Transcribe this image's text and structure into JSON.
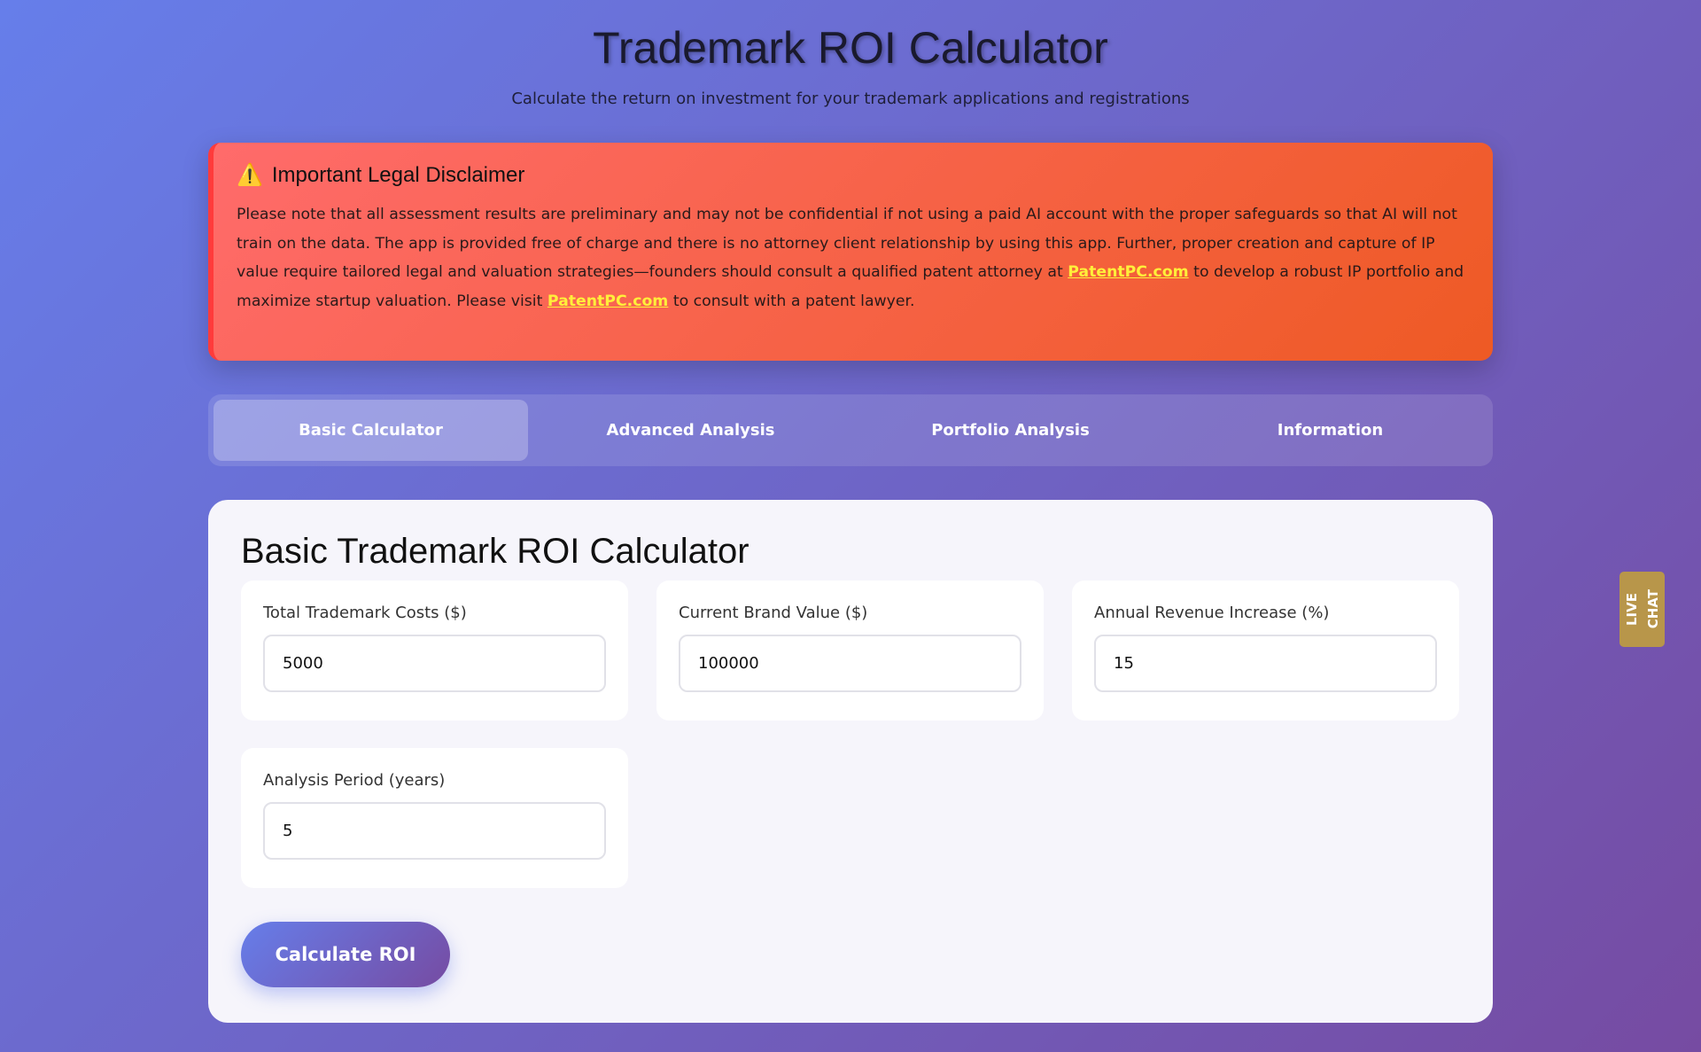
{
  "header": {
    "title": "Trademark ROI Calculator",
    "subtitle": "Calculate the return on investment for your trademark applications and registrations"
  },
  "disclaimer": {
    "icon": "warning-icon",
    "title": "Important Legal Disclaimer",
    "text_1": "Please note that all assessment results are preliminary and may not be confidential if not using a paid AI account with the proper safeguards so that AI will not train on the data. The app is provided free of charge and there is no attorney client relationship by using this app. Further, proper creation and capture of IP value require tailored legal and valuation strategies—founders should consult a qualified patent attorney at ",
    "link_1": "PatentPC.com",
    "text_2": " to develop a robust IP portfolio and maximize startup valuation. Please visit ",
    "link_2": "PatentPC.com",
    "text_3": " to consult with a patent lawyer."
  },
  "tabs": [
    {
      "label": "Basic Calculator",
      "active": true
    },
    {
      "label": "Advanced Analysis"
    },
    {
      "label": "Portfolio Analysis"
    },
    {
      "label": "Information"
    }
  ],
  "calculator": {
    "title": "Basic Trademark ROI Calculator",
    "fields": [
      {
        "label": "Total Trademark Costs ($)",
        "value": "5000"
      },
      {
        "label": "Current Brand Value ($)",
        "value": "100000"
      },
      {
        "label": "Annual Revenue Increase (%)",
        "value": "15"
      },
      {
        "label": "Analysis Period (years)",
        "value": "5"
      }
    ],
    "button": "Calculate ROI"
  },
  "live_chat": {
    "line1": "LIVE",
    "line2": "CHAT"
  }
}
